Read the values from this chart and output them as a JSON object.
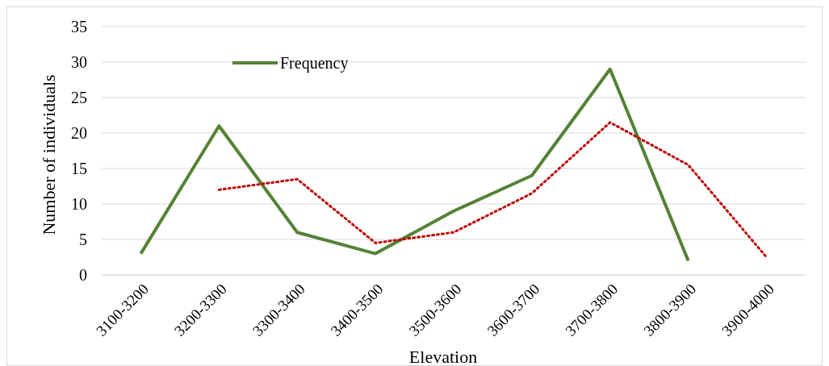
{
  "chart_data": {
    "type": "line",
    "xlabel": "Elevation",
    "ylabel": "Number of individuals",
    "categories": [
      "3100-3200",
      "3200-3300",
      "3300-3400",
      "3400-3500",
      "3500-3600",
      "3600-3700",
      "3700-3800",
      "3800-3900",
      "3900-4000"
    ],
    "series": [
      {
        "name": "Frequency",
        "color": "#548235",
        "line_style": "solid",
        "values": [
          3,
          21,
          6,
          3,
          9,
          14,
          29,
          2,
          null
        ]
      },
      {
        "color": "#c00000",
        "line_style": "dotted",
        "values": [
          null,
          12,
          13.5,
          4.5,
          6,
          11.5,
          21.5,
          15.5,
          2.5
        ]
      }
    ],
    "ylim": [
      0,
      35
    ],
    "yticks": [
      0,
      5,
      10,
      15,
      20,
      25,
      30,
      35
    ],
    "grid": "y",
    "legend": "top",
    "marker": "none"
  }
}
